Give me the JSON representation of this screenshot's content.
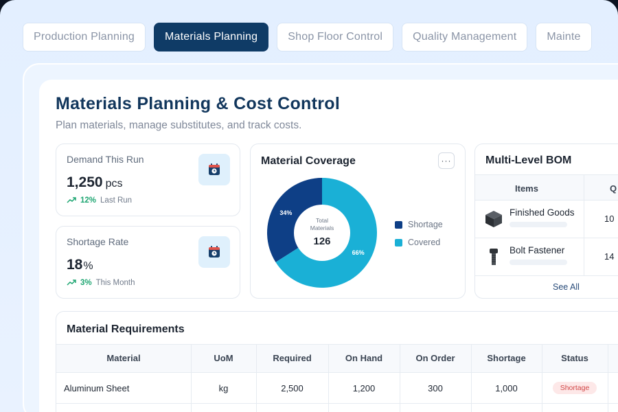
{
  "tabs": [
    {
      "label": "Production Planning",
      "active": false
    },
    {
      "label": "Materials Planning",
      "active": true
    },
    {
      "label": "Shop Floor Control",
      "active": false
    },
    {
      "label": "Quality Management",
      "active": false
    },
    {
      "label": "Mainte",
      "active": false
    }
  ],
  "header": {
    "title": "Materials Planning & Cost Control",
    "subtitle": "Plan materials, manage substitutes, and track costs."
  },
  "kpis": [
    {
      "label": "Demand This Run",
      "value": "1,250",
      "unit": "pcs",
      "trend_pct": "12%",
      "trend_label": "Last Run",
      "icon": "calendar-clock-icon"
    },
    {
      "label": "Shortage Rate",
      "value": "18",
      "unit": "%",
      "trend_pct": "3%",
      "trend_label": "This Month",
      "icon": "calendar-clock-icon"
    }
  ],
  "coverage": {
    "title": "Material Coverage",
    "more_label": "···",
    "center_label_1": "Total",
    "center_label_2": "Materials",
    "center_value": "126",
    "legend": [
      "Shortage",
      "Covered"
    ]
  },
  "chart_data": {
    "type": "pie",
    "categories": [
      "Shortage",
      "Covered"
    ],
    "values": [
      34,
      66
    ],
    "value_labels": [
      "34%",
      "66%"
    ],
    "colors": [
      "#0e3f86",
      "#1ab0d6"
    ],
    "title": "Material Coverage"
  },
  "bom": {
    "title": "Multi-Level BOM",
    "col_items": "Items",
    "col_qty": "Q",
    "rows": [
      {
        "name": "Finished Goods",
        "qty": "10",
        "icon": "cube-icon"
      },
      {
        "name": "Bolt Fastener",
        "qty": "14",
        "icon": "bolt-icon"
      }
    ],
    "see_all": "See All"
  },
  "requirements": {
    "title": "Material Requirements",
    "columns": [
      "Material",
      "UoM",
      "Required",
      "On Hand",
      "On Order",
      "Shortage",
      "Status"
    ],
    "rows": [
      {
        "material": "Aluminum Sheet",
        "uom": "kg",
        "required": "2,500",
        "on_hand": "1,200",
        "on_order": "300",
        "shortage": "1,000",
        "status": "Shortage"
      }
    ]
  },
  "colors": {
    "primary": "#0f3b66",
    "shortage": "#0e3f86",
    "covered": "#1ab0d6",
    "trend_up": "#1ea672",
    "badge_red": "#d14545"
  }
}
